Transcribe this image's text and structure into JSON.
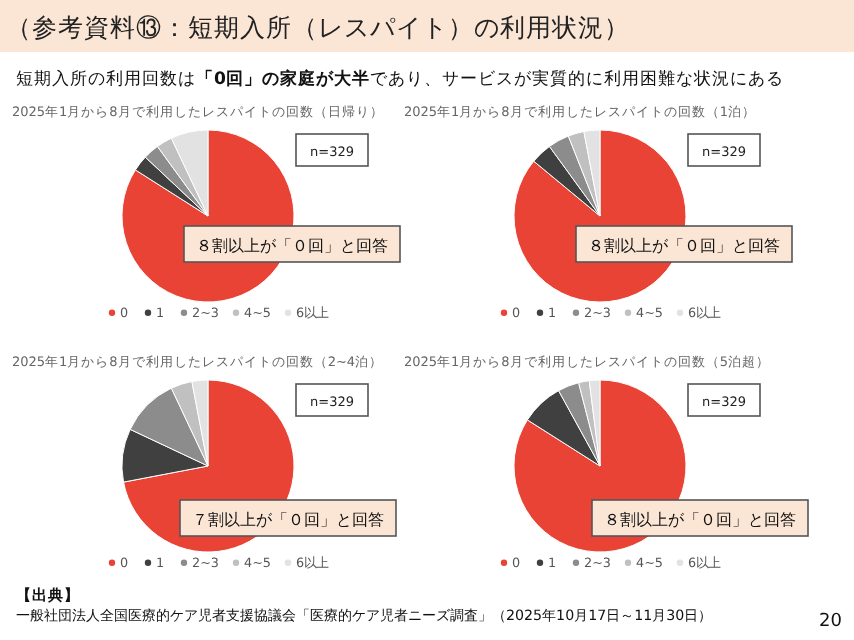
{
  "chart_data": [
    {
      "type": "other",
      "title": "（参考資料⑬：短期入所（レスパイト）の利用状況）",
      "subtitle": "短期入所の利用回数は**「0回」の家庭が大半**であり、サービスが実質的に利用困難な状況にある",
      "annotations": [
        "【出典】",
        "一般社団法人全国医療的ケア児者支援協議会「医療的ケア児者ニーズ調査」（2025年10月17日～11月30日）",
        "20"
      ]
    },
    {
      "type": "pie",
      "title": "2025年1月から8月で利用したレスパイトの回数（日帰り）",
      "annotations": [
        "n=329",
        "８割以上が「０回」と回答"
      ],
      "categories": [
        "0",
        "1",
        "2~3",
        "4~5",
        "6以上"
      ],
      "values": [
        84,
        3,
        3,
        3,
        7
      ],
      "colors": [
        "#e94335",
        "#404040",
        "#8c8c8c",
        "#c0c0c0",
        "#e2e2e2"
      ],
      "legend": "bottom"
    },
    {
      "type": "pie",
      "title": "2025年1月から8月で利用したレスパイトの回数（1泊）",
      "annotations": [
        "n=329",
        "８割以上が「０回」と回答"
      ],
      "categories": [
        "0",
        "1",
        "2~3",
        "4~5",
        "6以上"
      ],
      "values": [
        86,
        4,
        4,
        3,
        3
      ],
      "colors": [
        "#e94335",
        "#404040",
        "#8c8c8c",
        "#c0c0c0",
        "#e2e2e2"
      ],
      "legend": "bottom"
    },
    {
      "type": "pie",
      "title": "2025年1月から8月で利用したレスパイトの回数（2~4泊）",
      "annotations": [
        "n=329",
        "７割以上が「０回」と回答"
      ],
      "categories": [
        "0",
        "1",
        "2~3",
        "4~5",
        "6以上"
      ],
      "values": [
        72,
        10,
        11,
        4,
        3
      ],
      "colors": [
        "#e94335",
        "#404040",
        "#8c8c8c",
        "#c0c0c0",
        "#e2e2e2"
      ],
      "legend": "bottom"
    },
    {
      "type": "pie",
      "title": "2025年1月から8月で利用したレスパイトの回数（5泊超）",
      "annotations": [
        "n=329",
        "８割以上が「０回」と回答"
      ],
      "categories": [
        "0",
        "1",
        "2~3",
        "4~5",
        "6以上"
      ],
      "values": [
        84,
        8,
        4,
        2,
        2
      ],
      "colors": [
        "#e94335",
        "#404040",
        "#8c8c8c",
        "#c0c0c0",
        "#e2e2e2"
      ],
      "legend": "bottom"
    }
  ]
}
